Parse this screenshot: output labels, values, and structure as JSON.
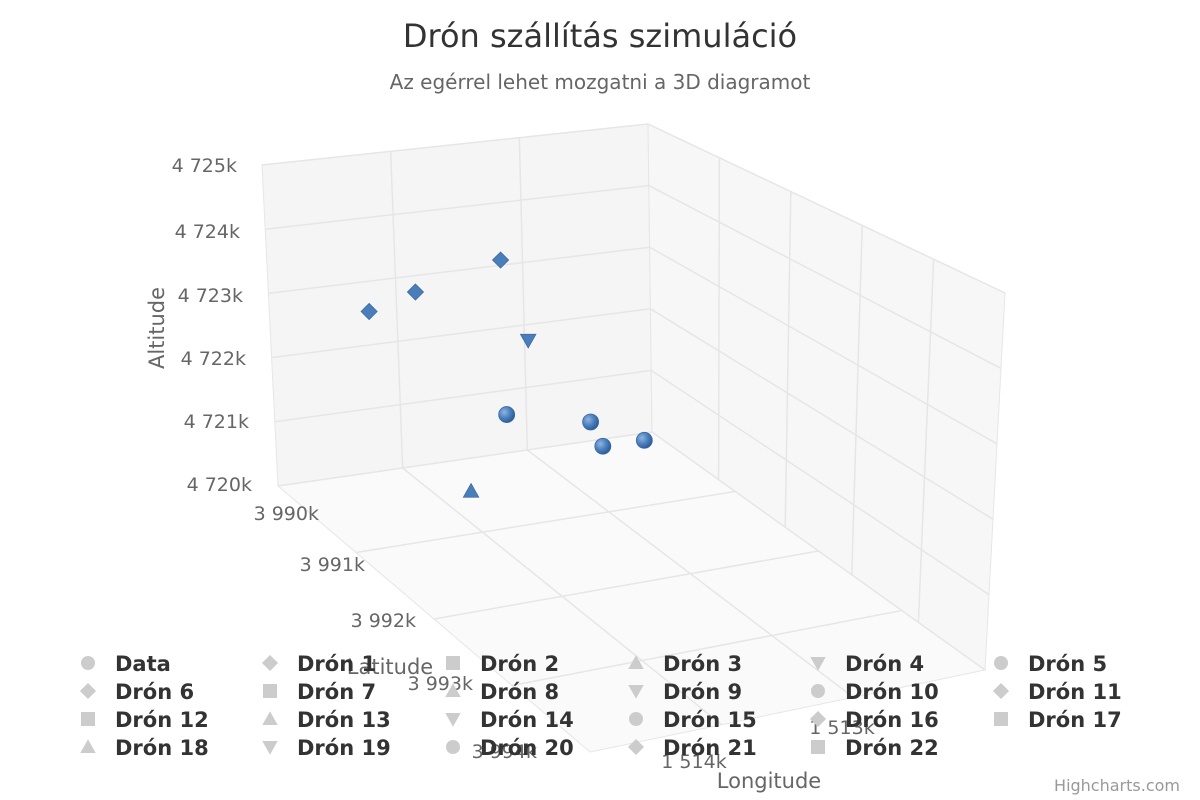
{
  "chart_data": {
    "type": "scatter",
    "title": "Drón szállítás szimuláció",
    "subtitle": "Az egérrel lehet mozgatni a 3D diagramot",
    "x_axis": {
      "title": "Longitude",
      "tick_labels": [
        "1 513k",
        "1 514k"
      ]
    },
    "y_axis": {
      "title": "Altitude",
      "tick_labels": [
        "4 720k",
        "4 721k",
        "4 722k",
        "4 723k",
        "4 724k",
        "4 725k"
      ],
      "range": [
        4720000,
        4725000
      ]
    },
    "z_axis": {
      "title": "Latitude",
      "tick_labels": [
        "3 990k",
        "3 991k",
        "3 992k",
        "3 993k",
        "3 994k"
      ],
      "range": [
        3990000,
        3994000
      ]
    },
    "grid": true,
    "legend_position": "bottom",
    "series": [
      {
        "name": "Data",
        "symbol": "circle",
        "points": []
      },
      {
        "name": "Drón 1",
        "symbol": "diamond",
        "points": [
          {
            "longitude": 1512600,
            "latitude": 3990500,
            "altitude": 4723300
          },
          {
            "longitude": 1512400,
            "latitude": 3990300,
            "altitude": 4722900
          }
        ]
      },
      {
        "name": "Drón 2",
        "symbol": "square",
        "points": []
      },
      {
        "name": "Drón 3",
        "symbol": "triangle",
        "points": [
          {
            "longitude": 1512700,
            "latitude": 3991000,
            "altitude": 4720600
          }
        ]
      },
      {
        "name": "Drón 4",
        "symbol": "triangle-down",
        "points": [
          {
            "longitude": 1513300,
            "latitude": 3990200,
            "altitude": 4722000
          }
        ]
      },
      {
        "name": "Drón 5",
        "symbol": "circle",
        "points": [
          {
            "longitude": 1513100,
            "latitude": 3990400,
            "altitude": 4721100
          },
          {
            "longitude": 1513500,
            "latitude": 3990600,
            "altitude": 4721000
          }
        ]
      },
      {
        "name": "Drón 6",
        "symbol": "diamond",
        "points": [
          {
            "longitude": 1513200,
            "latitude": 3990100,
            "altitude": 4723200
          }
        ]
      },
      {
        "name": "Drón 7",
        "symbol": "square",
        "points": []
      },
      {
        "name": "Drón 8",
        "symbol": "triangle",
        "points": []
      },
      {
        "name": "Drón 9",
        "symbol": "triangle-down",
        "points": []
      },
      {
        "name": "Drón 10",
        "symbol": "circle",
        "points": [
          {
            "longitude": 1513500,
            "latitude": 3990800,
            "altitude": 4720800
          },
          {
            "longitude": 1513700,
            "latitude": 3990900,
            "altitude": 4720900
          }
        ]
      },
      {
        "name": "Drón 11",
        "symbol": "diamond",
        "points": []
      },
      {
        "name": "Drón 12",
        "symbol": "square",
        "points": []
      },
      {
        "name": "Drón 13",
        "symbol": "triangle",
        "points": []
      },
      {
        "name": "Drón 14",
        "symbol": "triangle-down",
        "points": []
      },
      {
        "name": "Drón 15",
        "symbol": "circle",
        "points": []
      },
      {
        "name": "Drón 16",
        "symbol": "diamond",
        "points": []
      },
      {
        "name": "Drón 17",
        "symbol": "square",
        "points": []
      },
      {
        "name": "Drón 18",
        "symbol": "triangle",
        "points": []
      },
      {
        "name": "Drón 19",
        "symbol": "triangle-down",
        "points": []
      },
      {
        "name": "Drón 20",
        "symbol": "circle",
        "points": []
      },
      {
        "name": "Drón 21",
        "symbol": "diamond",
        "points": []
      },
      {
        "name": "Drón 22",
        "symbol": "square",
        "points": []
      }
    ],
    "colors": {
      "marker": "#4a7ebb",
      "legend_inactive": "#cccccc",
      "grid": "#e6e6e6",
      "pane": "#f7f7f7",
      "floor": "#fafafa"
    }
  },
  "credits": "Highcharts.com"
}
